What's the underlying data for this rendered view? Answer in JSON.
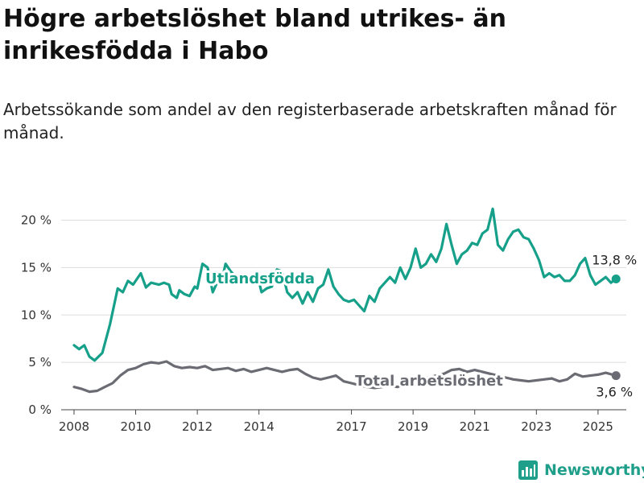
{
  "title": "Högre arbetslöshet bland utrikes- än inrikesfödda i Habo",
  "subtitle": "Arbetssökande som andel av den registerbaserade arbetskraften månad för månad.",
  "brand": "Newsworthy",
  "colors": {
    "foreign": "#16a08a",
    "total": "#6b6b73",
    "grid": "#dddddd"
  },
  "chart_data": {
    "type": "line",
    "title": "Högre arbetslöshet bland utrikes- än inrikesfödda i Habo",
    "subtitle": "Arbetssökande som andel av den registerbaserade arbetskraften månad för månad.",
    "xlabel": "",
    "ylabel": "",
    "x_ticks": [
      "2008",
      "2010",
      "2012",
      "2014",
      "2017",
      "2019",
      "2021",
      "2023",
      "2025"
    ],
    "y_ticks": [
      "0 %",
      "5 %",
      "10 %",
      "15 %",
      "20 %"
    ],
    "ylim": [
      0,
      22
    ],
    "xlim": [
      "2007-08",
      "2025-12"
    ],
    "grid": "horizontal",
    "legend": "inline",
    "series": [
      {
        "name": "Utlandsfödda",
        "end_label": "13,8 %",
        "points": [
          [
            "2008-01",
            6.8
          ],
          [
            "2008-03",
            6.4
          ],
          [
            "2008-05",
            6.8
          ],
          [
            "2008-07",
            5.6
          ],
          [
            "2008-09",
            5.2
          ],
          [
            "2008-12",
            6.0
          ],
          [
            "2009-03",
            9.0
          ],
          [
            "2009-06",
            12.8
          ],
          [
            "2009-08",
            12.4
          ],
          [
            "2009-10",
            13.6
          ],
          [
            "2009-12",
            13.2
          ],
          [
            "2010-03",
            14.4
          ],
          [
            "2010-05",
            12.9
          ],
          [
            "2010-07",
            13.4
          ],
          [
            "2010-10",
            13.2
          ],
          [
            "2010-12",
            13.4
          ],
          [
            "2011-02",
            13.2
          ],
          [
            "2011-03",
            12.2
          ],
          [
            "2011-05",
            11.8
          ],
          [
            "2011-06",
            12.6
          ],
          [
            "2011-08",
            12.2
          ],
          [
            "2011-10",
            12.0
          ],
          [
            "2011-12",
            13.0
          ],
          [
            "2012-01",
            12.8
          ],
          [
            "2012-03",
            15.4
          ],
          [
            "2012-05",
            15.0
          ],
          [
            "2012-07",
            12.4
          ],
          [
            "2012-09",
            13.6
          ],
          [
            "2012-11",
            14.2
          ],
          [
            "2012-12",
            15.4
          ],
          [
            "2013-02",
            14.6
          ],
          [
            "2013-04",
            14.0
          ],
          [
            "2013-06",
            14.2
          ],
          [
            "2013-08",
            13.8
          ],
          [
            "2013-10",
            14.0
          ],
          [
            "2013-12",
            14.6
          ],
          [
            "2014-02",
            12.4
          ],
          [
            "2014-04",
            12.8
          ],
          [
            "2014-06",
            13.0
          ],
          [
            "2014-08",
            14.8
          ],
          [
            "2014-10",
            14.6
          ],
          [
            "2014-12",
            12.4
          ],
          [
            "2015-02",
            11.8
          ],
          [
            "2015-04",
            12.4
          ],
          [
            "2015-06",
            11.2
          ],
          [
            "2015-08",
            12.4
          ],
          [
            "2015-10",
            11.4
          ],
          [
            "2015-12",
            12.8
          ],
          [
            "2016-02",
            13.2
          ],
          [
            "2016-04",
            14.8
          ],
          [
            "2016-06",
            13.0
          ],
          [
            "2016-08",
            12.2
          ],
          [
            "2016-10",
            11.6
          ],
          [
            "2016-12",
            11.4
          ],
          [
            "2017-02",
            11.6
          ],
          [
            "2017-04",
            11.0
          ],
          [
            "2017-06",
            10.4
          ],
          [
            "2017-08",
            12.0
          ],
          [
            "2017-10",
            11.4
          ],
          [
            "2017-12",
            12.8
          ],
          [
            "2018-02",
            13.4
          ],
          [
            "2018-04",
            14.0
          ],
          [
            "2018-06",
            13.4
          ],
          [
            "2018-08",
            15.0
          ],
          [
            "2018-10",
            13.8
          ],
          [
            "2018-12",
            15.0
          ],
          [
            "2019-02",
            17.0
          ],
          [
            "2019-04",
            15.0
          ],
          [
            "2019-06",
            15.4
          ],
          [
            "2019-08",
            16.4
          ],
          [
            "2019-10",
            15.6
          ],
          [
            "2019-12",
            17.0
          ],
          [
            "2020-02",
            19.6
          ],
          [
            "2020-04",
            17.4
          ],
          [
            "2020-06",
            15.4
          ],
          [
            "2020-08",
            16.4
          ],
          [
            "2020-10",
            16.8
          ],
          [
            "2020-12",
            17.6
          ],
          [
            "2021-02",
            17.4
          ],
          [
            "2021-04",
            18.6
          ],
          [
            "2021-06",
            19.0
          ],
          [
            "2021-08",
            21.2
          ],
          [
            "2021-10",
            17.4
          ],
          [
            "2021-12",
            16.8
          ],
          [
            "2022-02",
            18.0
          ],
          [
            "2022-04",
            18.8
          ],
          [
            "2022-06",
            19.0
          ],
          [
            "2022-08",
            18.2
          ],
          [
            "2022-10",
            18.0
          ],
          [
            "2022-12",
            17.0
          ],
          [
            "2023-02",
            15.8
          ],
          [
            "2023-04",
            14.0
          ],
          [
            "2023-06",
            14.4
          ],
          [
            "2023-08",
            14.0
          ],
          [
            "2023-10",
            14.2
          ],
          [
            "2023-12",
            13.6
          ],
          [
            "2024-02",
            13.6
          ],
          [
            "2024-04",
            14.2
          ],
          [
            "2024-06",
            15.4
          ],
          [
            "2024-08",
            16.0
          ],
          [
            "2024-10",
            14.2
          ],
          [
            "2024-12",
            13.2
          ],
          [
            "2025-02",
            13.6
          ],
          [
            "2025-04",
            14.0
          ],
          [
            "2025-06",
            13.4
          ],
          [
            "2025-08",
            13.8
          ]
        ]
      },
      {
        "name": "Total arbetslöshet",
        "end_label": "3,6 %",
        "points": [
          [
            "2008-01",
            2.4
          ],
          [
            "2008-04",
            2.2
          ],
          [
            "2008-07",
            1.9
          ],
          [
            "2008-10",
            2.0
          ],
          [
            "2009-01",
            2.4
          ],
          [
            "2009-04",
            2.8
          ],
          [
            "2009-07",
            3.6
          ],
          [
            "2009-10",
            4.2
          ],
          [
            "2010-01",
            4.4
          ],
          [
            "2010-04",
            4.8
          ],
          [
            "2010-07",
            5.0
          ],
          [
            "2010-10",
            4.9
          ],
          [
            "2011-01",
            5.1
          ],
          [
            "2011-04",
            4.6
          ],
          [
            "2011-07",
            4.4
          ],
          [
            "2011-10",
            4.5
          ],
          [
            "2012-01",
            4.4
          ],
          [
            "2012-04",
            4.6
          ],
          [
            "2012-07",
            4.2
          ],
          [
            "2012-10",
            4.3
          ],
          [
            "2013-01",
            4.4
          ],
          [
            "2013-04",
            4.1
          ],
          [
            "2013-07",
            4.3
          ],
          [
            "2013-10",
            4.0
          ],
          [
            "2014-01",
            4.2
          ],
          [
            "2014-04",
            4.4
          ],
          [
            "2014-07",
            4.2
          ],
          [
            "2014-10",
            4.0
          ],
          [
            "2015-01",
            4.2
          ],
          [
            "2015-04",
            4.3
          ],
          [
            "2015-07",
            3.8
          ],
          [
            "2015-10",
            3.4
          ],
          [
            "2016-01",
            3.2
          ],
          [
            "2016-04",
            3.4
          ],
          [
            "2016-07",
            3.6
          ],
          [
            "2016-10",
            3.0
          ],
          [
            "2017-01",
            2.8
          ],
          [
            "2017-04",
            2.6
          ],
          [
            "2017-07",
            2.4
          ],
          [
            "2017-10",
            2.3
          ],
          [
            "2018-01",
            2.4
          ],
          [
            "2018-04",
            2.5
          ],
          [
            "2018-07",
            2.4
          ],
          [
            "2018-10",
            2.8
          ],
          [
            "2019-01",
            3.0
          ],
          [
            "2019-04",
            3.2
          ],
          [
            "2019-07",
            3.4
          ],
          [
            "2019-10",
            3.6
          ],
          [
            "2020-01",
            3.8
          ],
          [
            "2020-04",
            4.2
          ],
          [
            "2020-07",
            4.3
          ],
          [
            "2020-10",
            4.0
          ],
          [
            "2021-01",
            4.2
          ],
          [
            "2021-04",
            4.0
          ],
          [
            "2021-07",
            3.8
          ],
          [
            "2021-10",
            3.6
          ],
          [
            "2022-01",
            3.4
          ],
          [
            "2022-04",
            3.2
          ],
          [
            "2022-07",
            3.1
          ],
          [
            "2022-10",
            3.0
          ],
          [
            "2023-01",
            3.1
          ],
          [
            "2023-04",
            3.2
          ],
          [
            "2023-07",
            3.3
          ],
          [
            "2023-10",
            3.0
          ],
          [
            "2024-01",
            3.2
          ],
          [
            "2024-04",
            3.8
          ],
          [
            "2024-07",
            3.5
          ],
          [
            "2024-10",
            3.6
          ],
          [
            "2025-01",
            3.7
          ],
          [
            "2025-04",
            3.9
          ],
          [
            "2025-08",
            3.6
          ]
        ]
      }
    ]
  }
}
